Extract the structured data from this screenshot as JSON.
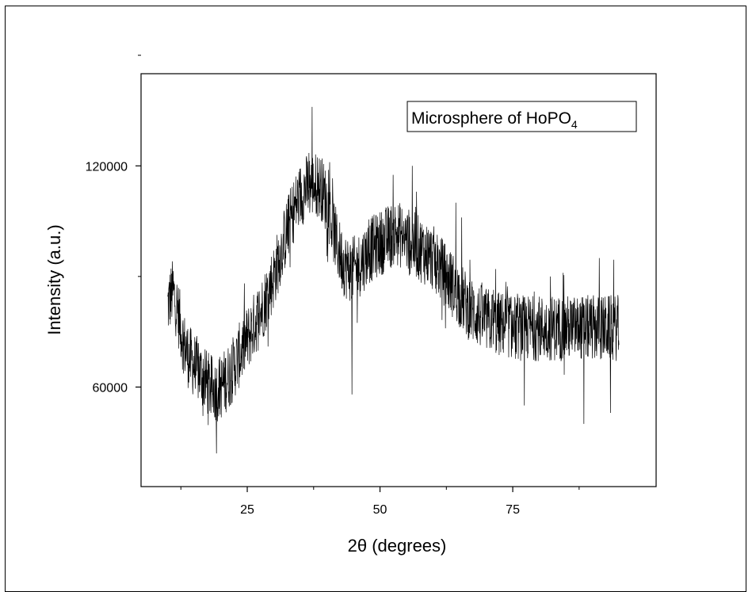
{
  "chart_data": {
    "type": "line",
    "title": "",
    "xlabel": "2θ (degrees)",
    "ylabel": "Intensity (a.u.)",
    "annotation": {
      "main": "Microsphere of  HoPO",
      "subscript": "4"
    },
    "xlim": [
      5,
      102
    ],
    "ylim": [
      33000,
      145000
    ],
    "x_ticks_major": [
      25,
      50,
      75
    ],
    "x_ticks_minor": [
      12.5,
      37.5,
      62.5,
      87.5
    ],
    "y_ticks_major": [
      60000,
      120000
    ],
    "y_ticks_minor": [
      90000,
      150000
    ],
    "x_tick_labels": [
      "25",
      "50",
      "75"
    ],
    "y_tick_labels": [
      "60000",
      "120000"
    ],
    "grid": false,
    "line_color": "#000000",
    "x_range": [
      10,
      95
    ],
    "num_points": 1700,
    "noise_amplitude": 9000,
    "spike_high": [
      {
        "x": 37.2,
        "y": 136000
      },
      {
        "x": 56.1,
        "y": 120000
      },
      {
        "x": 56.9,
        "y": 113000
      },
      {
        "x": 40.5,
        "y": 121000
      },
      {
        "x": 65.4,
        "y": 106000
      },
      {
        "x": 64.3,
        "y": 110000
      },
      {
        "x": 71.8,
        "y": 92000
      },
      {
        "x": 82.1,
        "y": 90000
      },
      {
        "x": 84.5,
        "y": 91000
      },
      {
        "x": 91.3,
        "y": 95000
      }
    ],
    "spike_low": [
      {
        "x": 19.2,
        "y": 42000
      },
      {
        "x": 44.7,
        "y": 58000
      },
      {
        "x": 88.4,
        "y": 50000
      },
      {
        "x": 77.2,
        "y": 55000
      },
      {
        "x": 93.4,
        "y": 53000
      }
    ],
    "series": [
      {
        "x": [
          10,
          11,
          12,
          13,
          14,
          15,
          16,
          17,
          18,
          19,
          20,
          21,
          22,
          23,
          24,
          25,
          26,
          27,
          28,
          29,
          30,
          31,
          32,
          33,
          34,
          35,
          36,
          37,
          38,
          39,
          40,
          41,
          42,
          43,
          44,
          45,
          46,
          47,
          48,
          49,
          50,
          51,
          52,
          53,
          54,
          55,
          56,
          57,
          58,
          59,
          60,
          61,
          62,
          63,
          64,
          65,
          66,
          67,
          68,
          69,
          70,
          71,
          72,
          73,
          74,
          75,
          76,
          77,
          78,
          79,
          80,
          81,
          82,
          83,
          84,
          85,
          86,
          87,
          88,
          89,
          90,
          91,
          92,
          93,
          94,
          95
        ],
        "values": [
          82000,
          86000,
          80000,
          72000,
          68000,
          66000,
          64000,
          62000,
          60000,
          59000,
          60000,
          62000,
          64000,
          67000,
          70000,
          73000,
          76000,
          79000,
          82000,
          86000,
          90000,
          95000,
          100000,
          105000,
          109000,
          112000,
          114000,
          115000,
          115000,
          114000,
          110000,
          104000,
          98000,
          94000,
          92000,
          92000,
          93000,
          95000,
          97000,
          98000,
          99000,
          100000,
          101000,
          102000,
          101000,
          100000,
          99000,
          98000,
          97000,
          96000,
          95000,
          93000,
          91000,
          89000,
          87000,
          85000,
          83000,
          81000,
          80000,
          79000,
          78000,
          78000,
          77000,
          77000,
          77000,
          76000,
          76000,
          76000,
          76000,
          76000,
          76000,
          76000,
          76000,
          76000,
          76000,
          76000,
          76000,
          76000,
          76000,
          76000,
          76000,
          76000,
          76000,
          76000,
          76000,
          76000
        ]
      }
    ]
  }
}
